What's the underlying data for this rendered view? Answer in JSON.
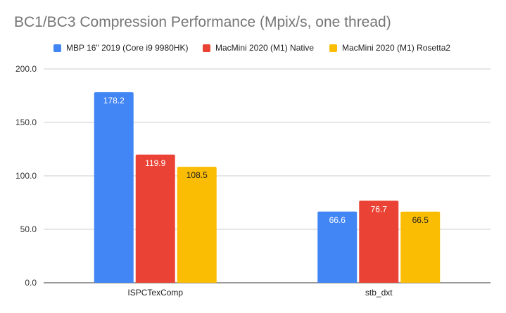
{
  "chart_data": {
    "type": "bar",
    "title": "BC1/BC3 Compression Performance (Mpix/s, one thread)",
    "categories": [
      "ISPCTexComp",
      "stb_dxt"
    ],
    "series": [
      {
        "name": "MBP 16\" 2019 (Core i9 9980HK)",
        "values": [
          178.2,
          66.6
        ],
        "color": "#4285f4",
        "label_color": "#ffffff"
      },
      {
        "name": "MacMini 2020 (M1) Native",
        "values": [
          119.9,
          76.7
        ],
        "color": "#ea4335",
        "label_color": "#ffffff"
      },
      {
        "name": "MacMini 2020 (M1) Rosetta2",
        "values": [
          108.5,
          66.5
        ],
        "color": "#fbbc04",
        "label_color": "#222222"
      }
    ],
    "y_ticks": [
      "0.0",
      "50.0",
      "100.0",
      "150.0",
      "200.0"
    ],
    "ylim": [
      0,
      200
    ],
    "grid": true,
    "legend_position": "top"
  }
}
